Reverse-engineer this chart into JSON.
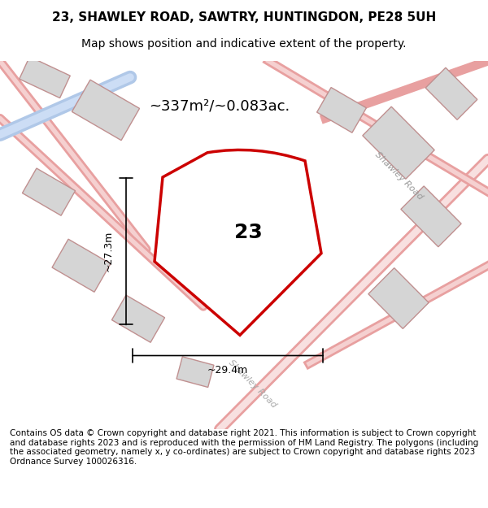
{
  "title_line1": "23, SHAWLEY ROAD, SAWTRY, HUNTINGDON, PE28 5UH",
  "title_line2": "Map shows position and indicative extent of the property.",
  "area_label": "~337m²/~0.083ac.",
  "plot_number": "23",
  "dim_vertical": "~27.3m",
  "dim_horizontal": "~29.4m",
  "footer_text": "Contains OS data © Crown copyright and database right 2021. This information is subject to Crown copyright and database rights 2023 and is reproduced with the permission of HM Land Registry. The polygons (including the associated geometry, namely x, y co-ordinates) are subject to Crown copyright and database rights 2023 Ordnance Survey 100026316.",
  "bg_color": "#f5f5f5",
  "map_bg": "#f0eeee",
  "plot_color": "#cc0000",
  "plot_fill": "none",
  "road_label1": "Shawley Road",
  "road_label2": "Shawley Road",
  "title_fontsize": 11,
  "subtitle_fontsize": 10,
  "footer_fontsize": 7.5
}
